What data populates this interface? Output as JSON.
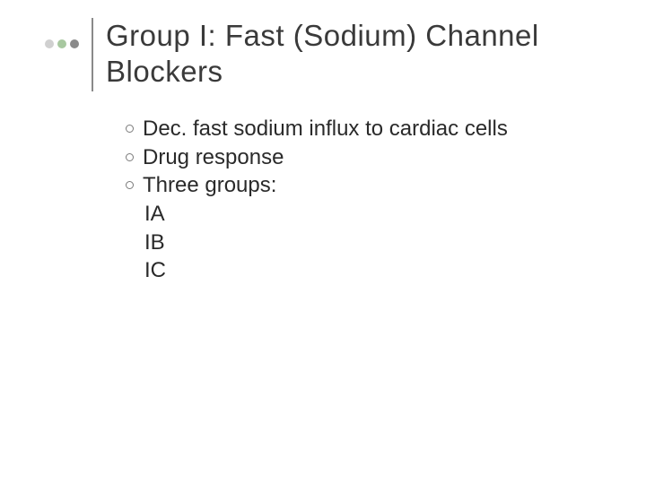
{
  "slide": {
    "title": "Group I: Fast (Sodium) Channel Blockers",
    "title_color": "#3a3a3a",
    "title_fontsize": 33,
    "decor_dots": [
      {
        "color": "#d0d0d0"
      },
      {
        "color": "#a8c8a0"
      },
      {
        "color": "#8a8a8a"
      }
    ],
    "divider_color": "#8a8a8a",
    "bullets": [
      {
        "text": "Dec. fast sodium influx to cardiac cells"
      },
      {
        "text": "Drug response"
      },
      {
        "text": "Three groups:"
      }
    ],
    "sub_items": [
      {
        "text": "IA"
      },
      {
        "text": "IB"
      },
      {
        "text": "IC"
      }
    ],
    "body_fontsize": 24,
    "body_color": "#2a2a2a",
    "background_color": "#ffffff",
    "bullet_border_color": "#7a7a7a"
  }
}
